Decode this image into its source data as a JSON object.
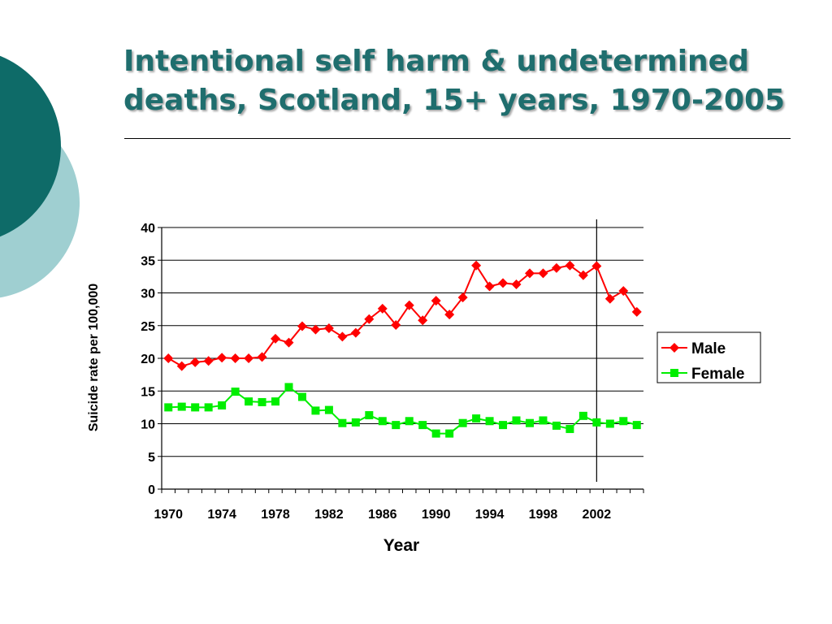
{
  "slide": {
    "title_line1": "Intentional self harm & undetermined",
    "title_line2": "deaths, Scotland, 15+ years, 1970-2005",
    "title_color": "#1f6e6e",
    "decoration_colors": {
      "dark": "#0e6b68",
      "light": "#9fcfd1"
    }
  },
  "chart_data": {
    "type": "line",
    "title": "",
    "xlabel": "Year",
    "ylabel": "Suicide rate per 100,000",
    "x": [
      1970,
      1971,
      1972,
      1973,
      1974,
      1975,
      1976,
      1977,
      1978,
      1979,
      1980,
      1981,
      1982,
      1983,
      1984,
      1985,
      1986,
      1987,
      1988,
      1989,
      1990,
      1991,
      1992,
      1993,
      1994,
      1995,
      1996,
      1997,
      1998,
      1999,
      2000,
      2001,
      2002,
      2003,
      2004,
      2005
    ],
    "xticks": [
      1970,
      1974,
      1978,
      1982,
      1986,
      1990,
      1994,
      1998,
      2002
    ],
    "xlim": [
      1969.5,
      2005.5
    ],
    "ylim": [
      0,
      40
    ],
    "yticks": [
      0,
      5,
      10,
      15,
      20,
      25,
      30,
      35,
      40
    ],
    "grid": "horizontal",
    "reference_line_x": 2002,
    "legend_position": "right",
    "series": [
      {
        "name": "Male",
        "color": "#ff0000",
        "marker": "diamond",
        "values": [
          20.0,
          18.8,
          19.4,
          19.6,
          20.1,
          20.0,
          20.0,
          20.2,
          23.0,
          22.4,
          24.9,
          24.4,
          24.6,
          23.3,
          23.9,
          26.0,
          27.6,
          25.1,
          28.1,
          25.8,
          28.8,
          26.7,
          29.3,
          34.2,
          31.0,
          31.5,
          31.3,
          33.0,
          33.0,
          33.8,
          34.2,
          32.7,
          34.1,
          29.1,
          30.3,
          27.1
        ]
      },
      {
        "name": "Female",
        "color": "#00ee00",
        "marker": "square",
        "values": [
          12.5,
          12.6,
          12.5,
          12.5,
          12.8,
          14.9,
          13.4,
          13.3,
          13.4,
          15.6,
          14.1,
          12.0,
          12.1,
          10.1,
          10.2,
          11.3,
          10.4,
          9.8,
          10.4,
          9.8,
          8.5,
          8.5,
          10.1,
          10.8,
          10.4,
          9.8,
          10.5,
          10.1,
          10.5,
          9.7,
          9.2,
          11.2,
          10.2,
          10.0,
          10.4,
          9.8
        ]
      }
    ]
  }
}
